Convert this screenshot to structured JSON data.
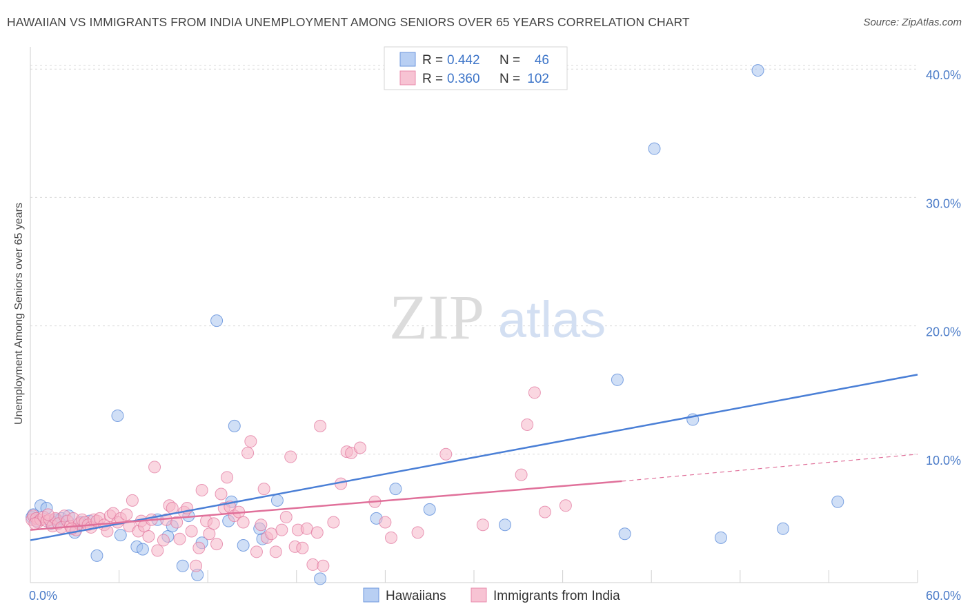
{
  "title": "HAWAIIAN VS IMMIGRANTS FROM INDIA UNEMPLOYMENT AMONG SENIORS OVER 65 YEARS CORRELATION CHART",
  "source": "Source: ZipAtlas.com",
  "watermark": {
    "zip": "ZIP",
    "atlas": "atlas"
  },
  "chart_data": {
    "type": "scatter",
    "title": "HAWAIIAN VS IMMIGRANTS FROM INDIA UNEMPLOYMENT AMONG SENIORS OVER 65 YEARS CORRELATION CHART",
    "xlabel": "",
    "ylabel": "Unemployment Among Seniors over 65 years",
    "xlim": [
      0,
      60
    ],
    "ylim": [
      0,
      42
    ],
    "x_tick_labels": [
      {
        "value": 0,
        "label": "0.0%"
      },
      {
        "value": 60,
        "label": "60.0%"
      }
    ],
    "y_tick_labels": [
      {
        "value": 10,
        "label": "10.0%"
      },
      {
        "value": 20,
        "label": "20.0%"
      },
      {
        "value": 30,
        "label": "30.0%"
      },
      {
        "value": 40,
        "label": "40.0%"
      }
    ],
    "x_minor_ticks": [
      6,
      12,
      18,
      24,
      30,
      36,
      42,
      48,
      54,
      60
    ],
    "grid": true,
    "legend_position": "bottom",
    "stats": [
      {
        "r_label": "R =",
        "r": "0.442",
        "n_label": "N =",
        "n": "46"
      },
      {
        "r_label": "R =",
        "r": "0.360",
        "n_label": "N =",
        "n": "102"
      }
    ],
    "series": [
      {
        "name": "Hawaiians",
        "color": "#4a7fd6",
        "fill": "#a9c4ef",
        "trend": {
          "x": [
            0,
            60
          ],
          "y": [
            3.3,
            16.2
          ],
          "dashed_to": null
        },
        "points": [
          [
            0.1,
            5.1
          ],
          [
            0.4,
            4.8
          ],
          [
            0.7,
            6.0
          ],
          [
            1.1,
            5.8
          ],
          [
            1.4,
            4.6
          ],
          [
            1.9,
            4.8
          ],
          [
            2.1,
            5.0
          ],
          [
            2.6,
            5.2
          ],
          [
            3.0,
            3.9
          ],
          [
            3.4,
            4.7
          ],
          [
            4.0,
            4.8
          ],
          [
            4.5,
            2.1
          ],
          [
            5.9,
            13.0
          ],
          [
            6.1,
            3.7
          ],
          [
            7.2,
            2.8
          ],
          [
            7.6,
            2.6
          ],
          [
            8.6,
            4.9
          ],
          [
            9.3,
            3.6
          ],
          [
            9.6,
            4.4
          ],
          [
            10.3,
            1.3
          ],
          [
            10.7,
            5.2
          ],
          [
            11.3,
            0.6
          ],
          [
            11.6,
            3.1
          ],
          [
            12.6,
            20.4
          ],
          [
            13.4,
            4.8
          ],
          [
            13.6,
            6.3
          ],
          [
            13.8,
            12.2
          ],
          [
            14.4,
            2.9
          ],
          [
            15.7,
            3.4
          ],
          [
            15.5,
            4.2
          ],
          [
            16.7,
            6.4
          ],
          [
            19.6,
            0.3
          ],
          [
            23.4,
            5.0
          ],
          [
            24.7,
            7.3
          ],
          [
            27.0,
            5.7
          ],
          [
            32.1,
            4.5
          ],
          [
            39.7,
            15.8
          ],
          [
            40.2,
            3.8
          ],
          [
            42.2,
            33.8
          ],
          [
            44.8,
            12.7
          ],
          [
            46.7,
            3.5
          ],
          [
            49.2,
            39.9
          ],
          [
            50.9,
            4.2
          ],
          [
            54.6,
            6.3
          ],
          [
            0.2,
            5.3
          ],
          [
            1.7,
            4.9
          ]
        ]
      },
      {
        "name": "Immigrants from India",
        "color": "#e0709a",
        "fill": "#f6b6c9",
        "trend": {
          "x": [
            0,
            40
          ],
          "y": [
            4.1,
            7.9
          ],
          "dashed_to": [
            60,
            10.0
          ]
        },
        "points": [
          [
            0.1,
            4.9
          ],
          [
            0.2,
            5.2
          ],
          [
            0.4,
            5.0
          ],
          [
            0.5,
            4.7
          ],
          [
            0.7,
            4.9
          ],
          [
            0.9,
            5.1
          ],
          [
            1.1,
            4.8
          ],
          [
            1.3,
            4.9
          ],
          [
            1.5,
            4.4
          ],
          [
            1.7,
            5.0
          ],
          [
            1.9,
            4.6
          ],
          [
            2.1,
            4.3
          ],
          [
            2.3,
            5.2
          ],
          [
            2.5,
            4.8
          ],
          [
            2.7,
            4.4
          ],
          [
            2.9,
            5.0
          ],
          [
            3.1,
            4.1
          ],
          [
            3.3,
            4.6
          ],
          [
            3.5,
            4.9
          ],
          [
            3.7,
            4.7
          ],
          [
            3.9,
            4.5
          ],
          [
            4.1,
            4.3
          ],
          [
            4.3,
            4.9
          ],
          [
            4.5,
            4.8
          ],
          [
            4.7,
            5.0
          ],
          [
            5.0,
            4.5
          ],
          [
            5.2,
            4.0
          ],
          [
            5.4,
            5.2
          ],
          [
            5.6,
            5.4
          ],
          [
            5.9,
            4.7
          ],
          [
            6.1,
            5.0
          ],
          [
            6.5,
            5.3
          ],
          [
            6.7,
            4.4
          ],
          [
            6.9,
            6.4
          ],
          [
            7.3,
            4.0
          ],
          [
            7.5,
            4.8
          ],
          [
            7.7,
            4.4
          ],
          [
            8.0,
            3.6
          ],
          [
            8.2,
            4.9
          ],
          [
            8.4,
            9.0
          ],
          [
            8.6,
            2.5
          ],
          [
            9.0,
            3.3
          ],
          [
            9.2,
            4.9
          ],
          [
            9.4,
            6.0
          ],
          [
            9.6,
            5.8
          ],
          [
            9.9,
            4.7
          ],
          [
            10.1,
            3.4
          ],
          [
            10.4,
            5.5
          ],
          [
            10.6,
            5.8
          ],
          [
            10.9,
            4.0
          ],
          [
            11.2,
            1.3
          ],
          [
            11.4,
            2.7
          ],
          [
            11.6,
            7.2
          ],
          [
            11.9,
            4.8
          ],
          [
            12.1,
            3.8
          ],
          [
            12.4,
            4.6
          ],
          [
            12.6,
            3.0
          ],
          [
            12.9,
            6.9
          ],
          [
            13.1,
            5.8
          ],
          [
            13.3,
            8.2
          ],
          [
            13.5,
            5.9
          ],
          [
            13.8,
            5.2
          ],
          [
            14.1,
            5.5
          ],
          [
            14.4,
            4.7
          ],
          [
            14.7,
            10.1
          ],
          [
            14.9,
            11.0
          ],
          [
            15.3,
            2.4
          ],
          [
            15.6,
            4.5
          ],
          [
            15.8,
            7.3
          ],
          [
            16.0,
            3.5
          ],
          [
            16.3,
            3.8
          ],
          [
            16.6,
            2.4
          ],
          [
            17.0,
            4.1
          ],
          [
            17.3,
            5.1
          ],
          [
            17.6,
            9.8
          ],
          [
            17.9,
            2.8
          ],
          [
            18.1,
            4.1
          ],
          [
            18.4,
            2.7
          ],
          [
            18.7,
            4.2
          ],
          [
            19.1,
            1.4
          ],
          [
            19.4,
            3.9
          ],
          [
            19.6,
            12.2
          ],
          [
            19.8,
            1.3
          ],
          [
            20.5,
            4.7
          ],
          [
            21.0,
            7.7
          ],
          [
            21.4,
            10.2
          ],
          [
            21.7,
            10.1
          ],
          [
            22.3,
            10.5
          ],
          [
            23.3,
            6.3
          ],
          [
            24.0,
            4.7
          ],
          [
            24.4,
            3.5
          ],
          [
            26.2,
            3.9
          ],
          [
            28.1,
            10.0
          ],
          [
            30.6,
            4.5
          ],
          [
            33.2,
            8.4
          ],
          [
            33.6,
            12.3
          ],
          [
            34.1,
            14.8
          ],
          [
            34.8,
            5.5
          ],
          [
            36.2,
            6.0
          ],
          [
            0.3,
            4.6
          ],
          [
            1.2,
            5.3
          ],
          [
            2.8,
            4.2
          ]
        ]
      }
    ]
  }
}
